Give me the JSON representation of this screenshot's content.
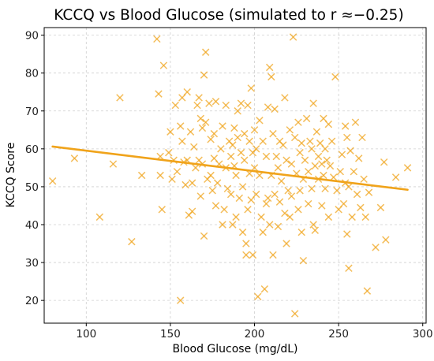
{
  "chart_data": {
    "type": "scatter",
    "title": "KCCQ vs Blood Glucose (simulated to r ≈−0.25)",
    "xlabel": "Blood Glucose (mg/dL)",
    "ylabel": "KCCQ Score",
    "xlim": [
      75,
      302
    ],
    "ylim": [
      14,
      92
    ],
    "xticks": [
      100,
      150,
      200,
      250,
      300
    ],
    "yticks": [
      20,
      30,
      40,
      50,
      60,
      70,
      80,
      90
    ],
    "grid": true,
    "marker": "x",
    "point_color": "#f0a31a",
    "line_color": "#f0a31a",
    "trend_line": {
      "x": [
        80,
        291
      ],
      "y": [
        60.6,
        49.2
      ]
    },
    "points": [
      [
        80,
        51.5
      ],
      [
        93,
        57.5
      ],
      [
        108,
        42
      ],
      [
        116,
        56
      ],
      [
        120,
        73.5
      ],
      [
        127,
        35.5
      ],
      [
        133,
        53
      ],
      [
        142,
        89
      ],
      [
        143,
        74.5
      ],
      [
        144,
        58
      ],
      [
        144,
        53
      ],
      [
        145,
        44
      ],
      [
        146,
        82
      ],
      [
        149,
        59
      ],
      [
        150,
        64.5
      ],
      [
        151,
        52
      ],
      [
        152,
        57
      ],
      [
        153,
        71.5
      ],
      [
        154,
        54
      ],
      [
        156,
        20
      ],
      [
        156,
        66
      ],
      [
        157,
        73.5
      ],
      [
        157,
        62
      ],
      [
        158,
        56.5
      ],
      [
        159,
        50.5
      ],
      [
        160,
        75
      ],
      [
        160,
        57
      ],
      [
        161,
        42.5
      ],
      [
        162,
        64.5
      ],
      [
        163,
        51
      ],
      [
        163,
        43.5
      ],
      [
        164,
        60.5
      ],
      [
        165,
        55
      ],
      [
        166,
        71.5
      ],
      [
        167,
        73.5
      ],
      [
        167,
        57
      ],
      [
        168,
        68
      ],
      [
        168,
        47.5
      ],
      [
        169,
        65.5
      ],
      [
        169,
        56
      ],
      [
        170,
        79.5
      ],
      [
        170,
        37
      ],
      [
        171,
        85.5
      ],
      [
        171,
        67
      ],
      [
        172,
        52
      ],
      [
        173,
        72
      ],
      [
        174,
        62.5
      ],
      [
        174,
        53
      ],
      [
        175,
        49
      ],
      [
        176,
        64
      ],
      [
        176,
        57.5
      ],
      [
        177,
        72.5
      ],
      [
        177,
        45
      ],
      [
        178,
        51
      ],
      [
        179,
        56
      ],
      [
        180,
        60
      ],
      [
        181,
        66
      ],
      [
        181,
        40
      ],
      [
        182,
        44
      ],
      [
        183,
        71.5
      ],
      [
        183,
        55
      ],
      [
        184,
        49.5
      ],
      [
        185,
        62
      ],
      [
        186,
        58
      ],
      [
        186,
        48
      ],
      [
        187,
        61
      ],
      [
        187,
        40
      ],
      [
        188,
        65.5
      ],
      [
        188,
        55.5
      ],
      [
        189,
        53
      ],
      [
        189,
        42
      ],
      [
        190,
        70
      ],
      [
        190,
        63
      ],
      [
        191,
        47
      ],
      [
        192,
        72
      ],
      [
        192,
        59
      ],
      [
        193,
        50
      ],
      [
        193,
        38
      ],
      [
        194,
        64
      ],
      [
        194,
        57
      ],
      [
        195,
        35
      ],
      [
        195,
        32
      ],
      [
        196,
        71.5
      ],
      [
        196,
        44
      ],
      [
        197,
        62
      ],
      [
        197,
        53.5
      ],
      [
        198,
        76
      ],
      [
        198,
        46.5
      ],
      [
        199,
        59
      ],
      [
        199,
        32
      ],
      [
        200,
        65
      ],
      [
        200,
        55
      ],
      [
        201,
        60
      ],
      [
        201,
        48
      ],
      [
        202,
        21
      ],
      [
        203,
        67.5
      ],
      [
        203,
        53
      ],
      [
        204,
        42
      ],
      [
        205,
        62
      ],
      [
        205,
        38
      ],
      [
        206,
        23
      ],
      [
        207,
        58
      ],
      [
        207,
        45.5
      ],
      [
        208,
        71
      ],
      [
        208,
        47
      ],
      [
        209,
        81.5
      ],
      [
        209,
        40
      ],
      [
        210,
        79
      ],
      [
        210,
        53
      ],
      [
        211,
        64
      ],
      [
        211,
        32
      ],
      [
        212,
        70.5
      ],
      [
        212,
        48
      ],
      [
        213,
        58
      ],
      [
        214,
        55
      ],
      [
        214,
        39.5
      ],
      [
        215,
        62
      ],
      [
        215,
        46
      ],
      [
        216,
        51.5
      ],
      [
        217,
        61
      ],
      [
        218,
        73.5
      ],
      [
        218,
        43
      ],
      [
        219,
        57
      ],
      [
        219,
        35
      ],
      [
        220,
        49
      ],
      [
        221,
        65
      ],
      [
        221,
        42
      ],
      [
        222,
        56
      ],
      [
        222,
        47.5
      ],
      [
        223,
        89.5
      ],
      [
        224,
        63
      ],
      [
        224,
        16.5
      ],
      [
        225,
        53.5
      ],
      [
        226,
        67
      ],
      [
        226,
        44
      ],
      [
        227,
        59
      ],
      [
        227,
        49
      ],
      [
        228,
        61.5
      ],
      [
        228,
        38
      ],
      [
        229,
        52
      ],
      [
        229,
        30.5
      ],
      [
        230,
        57
      ],
      [
        231,
        68
      ],
      [
        232,
        54
      ],
      [
        232,
        45.5
      ],
      [
        233,
        62
      ],
      [
        234,
        60
      ],
      [
        234,
        49.5
      ],
      [
        235,
        72
      ],
      [
        235,
        40
      ],
      [
        236,
        55.5
      ],
      [
        236,
        38.5
      ],
      [
        237,
        64.5
      ],
      [
        238,
        58
      ],
      [
        238,
        52
      ],
      [
        239,
        61.5
      ],
      [
        240,
        56
      ],
      [
        240,
        45
      ],
      [
        241,
        68
      ],
      [
        241,
        53
      ],
      [
        242,
        60
      ],
      [
        242,
        49.5
      ],
      [
        243,
        57
      ],
      [
        244,
        66.5
      ],
      [
        244,
        42
      ],
      [
        245,
        55.5
      ],
      [
        246,
        62
      ],
      [
        247,
        52.5
      ],
      [
        248,
        79
      ],
      [
        249,
        49
      ],
      [
        250,
        44
      ],
      [
        251,
        54
      ],
      [
        252,
        58.5
      ],
      [
        253,
        45.5
      ],
      [
        254,
        66
      ],
      [
        254,
        51
      ],
      [
        255,
        63
      ],
      [
        255,
        37.5
      ],
      [
        256,
        50
      ],
      [
        256,
        28.5
      ],
      [
        257,
        59.5
      ],
      [
        258,
        42
      ],
      [
        259,
        54
      ],
      [
        260,
        67
      ],
      [
        261,
        48
      ],
      [
        262,
        57.5
      ],
      [
        263,
        44.5
      ],
      [
        264,
        63
      ],
      [
        265,
        52
      ],
      [
        266,
        42
      ],
      [
        267,
        22.5
      ],
      [
        268,
        48.5
      ],
      [
        272,
        34
      ],
      [
        275,
        44.5
      ],
      [
        277,
        56.5
      ],
      [
        278,
        36
      ],
      [
        284,
        52.5
      ],
      [
        291,
        55
      ]
    ]
  }
}
